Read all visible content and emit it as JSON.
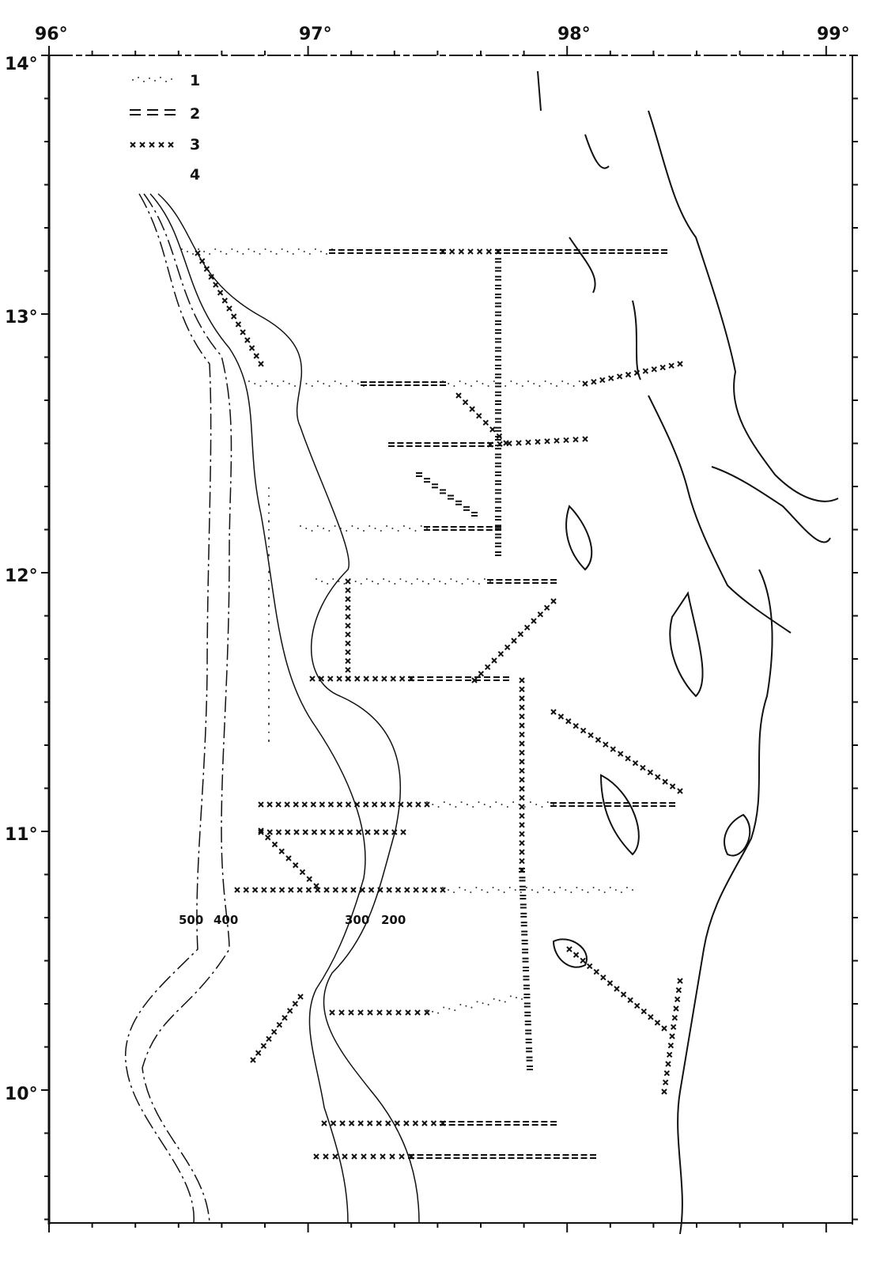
{
  "map": {
    "longitude_labels": [
      "96°",
      "97°",
      "98°",
      "99°"
    ],
    "latitude_labels": [
      "14°",
      "13°",
      "12°",
      "11°",
      "10°"
    ],
    "legend": [
      {
        "symbol": "dotted",
        "label": "1"
      },
      {
        "symbol": "double-dash",
        "label": "2"
      },
      {
        "symbol": "crosses",
        "label": "3"
      },
      {
        "symbol": "blank",
        "label": "4"
      }
    ],
    "contour_labels": [
      "500",
      "400",
      "300",
      "200"
    ],
    "colors": {
      "ink": "#111111",
      "paper": "#ffffff"
    }
  }
}
